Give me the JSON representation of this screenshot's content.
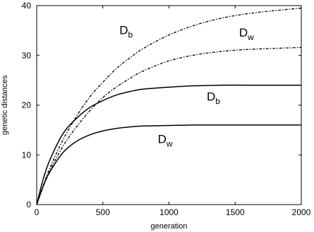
{
  "chart_data": {
    "type": "line",
    "title": "",
    "xlabel": "generation",
    "ylabel": "genetic distances",
    "xlim": [
      0,
      2000
    ],
    "ylim": [
      0,
      40
    ],
    "x_ticks": [
      0,
      500,
      1000,
      1500,
      2000
    ],
    "y_ticks": [
      0,
      10,
      20,
      30,
      40
    ],
    "grid": false,
    "series": [
      {
        "style": "dashed",
        "x": [
          0,
          50,
          100,
          200,
          300,
          400,
          500,
          600,
          700,
          800,
          1000,
          1200,
          1400,
          1600,
          1800,
          2000
        ],
        "y": [
          0,
          3.9,
          7.4,
          13.1,
          17.7,
          21.6,
          24.6,
          27.3,
          29.4,
          31.3,
          34.1,
          36.1,
          37.5,
          38.4,
          39.0,
          39.5
        ]
      },
      {
        "style": "dashed",
        "x": [
          0,
          50,
          100,
          200,
          300,
          400,
          500,
          600,
          700,
          800,
          1000,
          1200,
          1400,
          1600,
          1800,
          2000
        ],
        "y": [
          0,
          3.6,
          6.8,
          11.8,
          15.6,
          18.8,
          21.5,
          23.6,
          25.3,
          26.8,
          28.9,
          30.1,
          30.8,
          31.2,
          31.4,
          31.6
        ]
      },
      {
        "style": "solid",
        "x": [
          0,
          50,
          100,
          200,
          300,
          400,
          500,
          600,
          700,
          800,
          1000,
          1200,
          1400,
          1600,
          1800,
          2000
        ],
        "y": [
          0,
          5.2,
          9.0,
          14.3,
          17.3,
          19.5,
          20.9,
          22.0,
          22.7,
          23.2,
          23.6,
          23.9,
          24.0,
          24.0,
          24.0,
          24.0
        ]
      },
      {
        "style": "solid",
        "x": [
          0,
          50,
          100,
          200,
          300,
          400,
          500,
          600,
          700,
          800,
          1000,
          1200,
          1400,
          1600,
          1800,
          2000
        ],
        "y": [
          0,
          3.8,
          6.6,
          10.5,
          12.7,
          14.0,
          14.8,
          15.3,
          15.6,
          15.8,
          15.9,
          16.0,
          16.0,
          16.0,
          16.0,
          16.0
        ]
      }
    ],
    "annotations": [
      {
        "text": "D",
        "sub": "b",
        "x": 625,
        "y": 34.3
      },
      {
        "text": "D",
        "sub": "w",
        "x": 1530,
        "y": 33.8
      },
      {
        "text": "D",
        "sub": "b",
        "x": 1285,
        "y": 20.9
      },
      {
        "text": "D",
        "sub": "w",
        "x": 915,
        "y": 12.4
      }
    ]
  }
}
